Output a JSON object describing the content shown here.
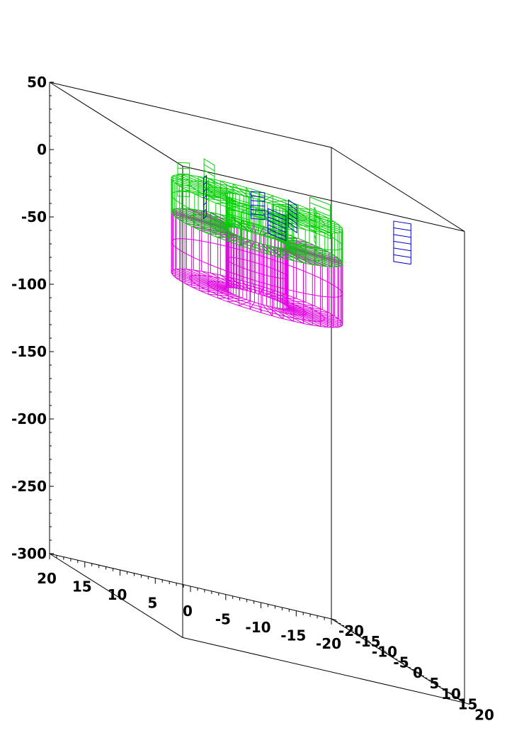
{
  "chart_data": {
    "type": "3d-wireframe",
    "title": "",
    "grid": false,
    "axes": {
      "z": {
        "range": [
          -300,
          50
        ],
        "ticks": [
          "50",
          "0",
          "-50",
          "-100",
          "-150",
          "-200",
          "-250",
          "-300"
        ]
      },
      "x": {
        "range": [
          20,
          -20
        ],
        "ticks": [
          "20",
          "15",
          "10",
          "5",
          "0",
          "-5",
          "-10",
          "-15",
          "-20"
        ]
      },
      "y": {
        "range": [
          -20,
          20
        ],
        "ticks": [
          "-20",
          "-15",
          "-10",
          "-5",
          "0",
          "5",
          "10",
          "15",
          "20"
        ]
      }
    },
    "objects": [
      {
        "name": "",
        "shape": "cylinder-ring",
        "color": "#e000e0",
        "z_range": [
          -55,
          -10
        ]
      },
      {
        "name": "",
        "shape": "cylinder-ring",
        "color": "#00d000",
        "z_range": [
          -10,
          15
        ]
      },
      {
        "name": "",
        "shape": "plates",
        "color": "#0000d0",
        "z_range": [
          0,
          40
        ]
      }
    ],
    "colors": {
      "box": "#000000",
      "magenta": "#e000e0",
      "green": "#00d000",
      "blue": "#0000d0"
    }
  }
}
